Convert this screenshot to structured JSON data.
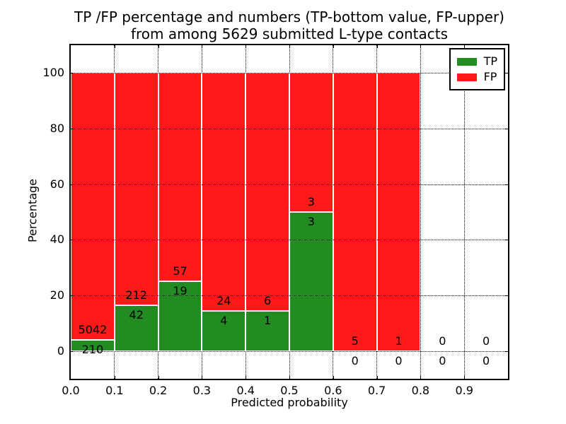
{
  "chart_data": {
    "type": "bar",
    "stacked": true,
    "title_line1": "TP /FP percentage and numbers (TP-bottom value, FP-upper)",
    "title_line2": "from among 5629 submitted L-type contacts",
    "xlabel": "Predicted probability",
    "ylabel": "Percentage",
    "x_tick_labels": [
      "0.0",
      "0.1",
      "0.2",
      "0.3",
      "0.4",
      "0.5",
      "0.6",
      "0.7",
      "0.8",
      "0.9"
    ],
    "y_ticks": [
      0,
      20,
      40,
      60,
      80,
      100
    ],
    "xlim": [
      0.0,
      1.0
    ],
    "ylim": [
      -10,
      110
    ],
    "bin_width": 0.1,
    "grid": "dotted",
    "legend_position": "upper right",
    "series": [
      {
        "name": "TP",
        "color": "#228B22",
        "counts": [
          210,
          42,
          19,
          4,
          1,
          3,
          0,
          0,
          0,
          0
        ]
      },
      {
        "name": "FP",
        "color": "#FF1A1A",
        "counts": [
          5042,
          212,
          57,
          24,
          6,
          3,
          5,
          1,
          0,
          0
        ]
      }
    ],
    "tp_percent_by_bin": [
      4.0,
      16.5,
      25.0,
      14.3,
      14.3,
      50.0,
      0.0,
      0.0,
      null,
      null
    ],
    "bars_drawn_by_bin": [
      true,
      true,
      true,
      true,
      true,
      true,
      true,
      true,
      false,
      false
    ]
  }
}
